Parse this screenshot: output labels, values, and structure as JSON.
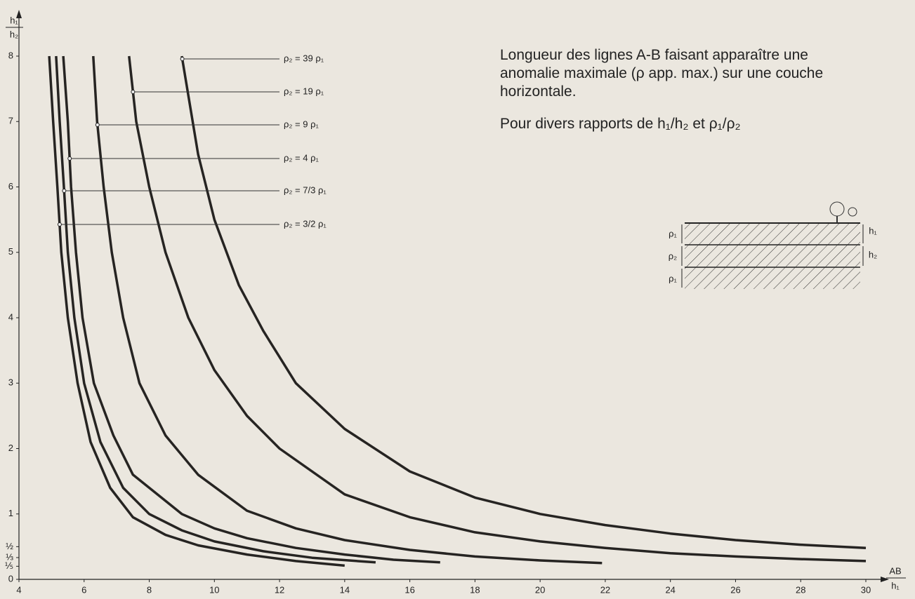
{
  "chart_data": {
    "type": "line",
    "title": "Longueur des lignes A-B faisant apparaître une anomalie maximale (ρ app. max.) sur une couche horizontale.",
    "subtitle": "Pour divers rapports de h₁/h₂ et ρ₁/ρ₂",
    "xlabel": [
      "AB",
      "h₁"
    ],
    "ylabel": [
      "h₁",
      "h₂"
    ],
    "xlim": [
      4,
      30
    ],
    "ylim": [
      0,
      8
    ],
    "xticks": [
      4,
      6,
      8,
      10,
      12,
      14,
      16,
      18,
      20,
      22,
      24,
      26,
      28,
      30
    ],
    "yticks": [
      0,
      {
        "value": 0.2,
        "label": "⅕"
      },
      {
        "value": 0.333,
        "label": "⅓"
      },
      {
        "value": 0.5,
        "label": "½"
      },
      1,
      2,
      3,
      4,
      5,
      6,
      7,
      8
    ],
    "grid": false,
    "color": "#262422",
    "series": [
      {
        "name": "ρ₂ = 39 ρ₁",
        "x": [
          9.0,
          9.5,
          10,
          10.75,
          11.5,
          12.5,
          14,
          16,
          18,
          20,
          22,
          24,
          26,
          28,
          30
        ],
        "values": [
          8,
          6.5,
          5.5,
          4.5,
          3.8,
          3,
          2.3,
          1.65,
          1.25,
          1.0,
          0.83,
          0.7,
          0.6,
          0.53,
          0.48
        ]
      },
      {
        "name": "ρ₂ = 19 ρ₁",
        "x": [
          7.38,
          7.6,
          8,
          8.5,
          9.2,
          10,
          11,
          12,
          14,
          16,
          18,
          20,
          22,
          24,
          26,
          28,
          30
        ],
        "values": [
          8,
          7,
          6,
          5,
          4,
          3.2,
          2.5,
          2.0,
          1.3,
          0.95,
          0.72,
          0.58,
          0.48,
          0.4,
          0.35,
          0.31,
          0.28
        ]
      },
      {
        "name": "ρ₂ = 9 ρ₁",
        "x": [
          6.28,
          6.4,
          6.6,
          6.85,
          7.2,
          7.7,
          8.5,
          9.5,
          11,
          12.5,
          14,
          16,
          18,
          20,
          21.9
        ],
        "values": [
          8,
          7,
          6,
          5,
          4,
          3,
          2.2,
          1.6,
          1.05,
          0.78,
          0.6,
          0.45,
          0.35,
          0.29,
          0.25
        ]
      },
      {
        "name": "ρ₂ = 4 ρ₁",
        "x": [
          5.36,
          5.5,
          5.6,
          5.75,
          5.95,
          6.3,
          6.9,
          7.5,
          9,
          10,
          11,
          12.5,
          14,
          15.5,
          16.93
        ],
        "values": [
          8,
          7,
          6,
          5,
          4,
          3,
          2.2,
          1.6,
          1.0,
          0.78,
          0.63,
          0.48,
          0.38,
          0.3,
          0.26
        ]
      },
      {
        "name": "ρ₂ = 7/3 ρ₁",
        "x": [
          5.14,
          5.25,
          5.38,
          5.5,
          5.7,
          6,
          6.5,
          7.2,
          8,
          9,
          10,
          11.5,
          13,
          14.95
        ],
        "values": [
          8,
          7,
          6,
          5,
          4,
          3,
          2.1,
          1.4,
          1.0,
          0.75,
          0.58,
          0.43,
          0.33,
          0.26
        ]
      },
      {
        "name": "ρ₂ = 3/2 ρ₁",
        "x": [
          4.93,
          5.05,
          5.18,
          5.3,
          5.5,
          5.8,
          6.2,
          6.8,
          7.5,
          8.5,
          9.5,
          11,
          12.5,
          14
        ],
        "values": [
          8,
          7,
          6,
          5,
          4,
          3,
          2.1,
          1.4,
          0.95,
          0.68,
          0.52,
          0.38,
          0.28,
          0.21
        ]
      }
    ]
  },
  "inset": {
    "layers": [
      "ρ₁",
      "ρ₂",
      "ρ₁"
    ],
    "thicknesses": [
      "h₁",
      "h₂"
    ]
  }
}
